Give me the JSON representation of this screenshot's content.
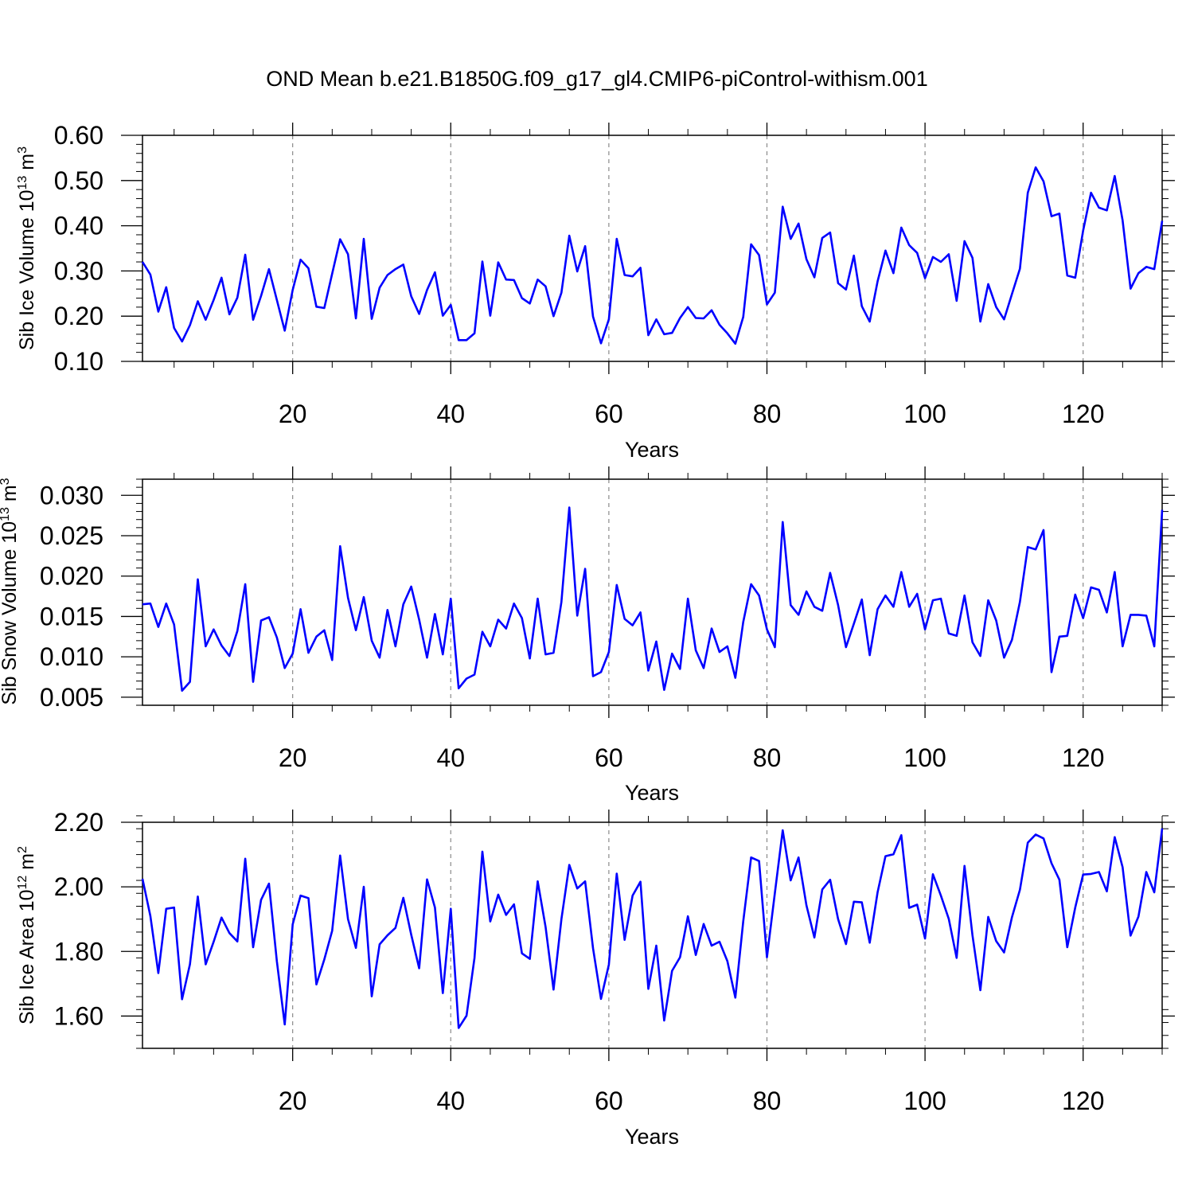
{
  "figure": {
    "title": "OND Mean b.e21.B1850G.f09_g17_gl4.CMIP6-piControl-withism.001",
    "line_color": "#0000ff"
  },
  "chart_data": [
    {
      "type": "line",
      "xlabel": "Years",
      "ylabel_main": "Sib Ice Volume 10",
      "ylabel_exp": "13",
      "ylabel_unit": " m",
      "ylabel_unit_exp": "3",
      "xlim": [
        1,
        130
      ],
      "ylim": [
        0.1,
        0.6
      ],
      "xticks": [
        20,
        40,
        60,
        80,
        100,
        120
      ],
      "yticks": [
        0.1,
        0.2,
        0.3,
        0.4,
        0.5,
        0.6
      ],
      "yticklabels": [
        "0.10",
        "0.20",
        "0.30",
        "0.40",
        "0.50",
        "0.60"
      ],
      "xgrid": true,
      "values": [
        0.32,
        0.292,
        0.21,
        0.264,
        0.174,
        0.144,
        0.18,
        0.233,
        0.192,
        0.236,
        0.285,
        0.204,
        0.241,
        0.336,
        0.192,
        0.245,
        0.304,
        0.236,
        0.168,
        0.258,
        0.325,
        0.306,
        0.221,
        0.218,
        0.294,
        0.37,
        0.337,
        0.195,
        0.371,
        0.194,
        0.263,
        0.291,
        0.304,
        0.314,
        0.244,
        0.205,
        0.258,
        0.297,
        0.201,
        0.225,
        0.147,
        0.147,
        0.162,
        0.321,
        0.201,
        0.319,
        0.281,
        0.28,
        0.24,
        0.228,
        0.281,
        0.266,
        0.2,
        0.252,
        0.378,
        0.299,
        0.355,
        0.199,
        0.14,
        0.193,
        0.371,
        0.291,
        0.288,
        0.307,
        0.158,
        0.193,
        0.16,
        0.163,
        0.196,
        0.22,
        0.196,
        0.195,
        0.213,
        0.181,
        0.162,
        0.139,
        0.198,
        0.359,
        0.335,
        0.226,
        0.252,
        0.442,
        0.371,
        0.405,
        0.326,
        0.286,
        0.373,
        0.385,
        0.273,
        0.259,
        0.334,
        0.222,
        0.188,
        0.277,
        0.345,
        0.295,
        0.396,
        0.357,
        0.34,
        0.284,
        0.331,
        0.32,
        0.337,
        0.234,
        0.366,
        0.329,
        0.188,
        0.271,
        0.22,
        0.193,
        0.249,
        0.305,
        0.473,
        0.529,
        0.498,
        0.421,
        0.427,
        0.29,
        0.285,
        0.389,
        0.473,
        0.44,
        0.434,
        0.51,
        0.412,
        0.261,
        0.295,
        0.309,
        0.304,
        0.411
      ]
    },
    {
      "type": "line",
      "xlabel": "Years",
      "ylabel_main": "Sib Snow Volume 10",
      "ylabel_exp": "13",
      "ylabel_unit": " m",
      "ylabel_unit_exp": "3",
      "xlim": [
        1,
        130
      ],
      "ylim": [
        0.004,
        0.032
      ],
      "xticks": [
        20,
        40,
        60,
        80,
        100,
        120
      ],
      "yticks": [
        0.005,
        0.01,
        0.015,
        0.02,
        0.025,
        0.03
      ],
      "yticklabels": [
        "0.005",
        "0.010",
        "0.015",
        "0.020",
        "0.025",
        "0.030"
      ],
      "xgrid": true,
      "values": [
        0.0165,
        0.0166,
        0.0137,
        0.0166,
        0.014,
        0.0058,
        0.0069,
        0.0196,
        0.0113,
        0.0134,
        0.0114,
        0.0101,
        0.0132,
        0.019,
        0.0069,
        0.0145,
        0.0149,
        0.0124,
        0.0086,
        0.0104,
        0.0159,
        0.0105,
        0.0125,
        0.0133,
        0.0096,
        0.0237,
        0.0173,
        0.0133,
        0.0174,
        0.012,
        0.0099,
        0.0158,
        0.0113,
        0.0165,
        0.0187,
        0.0146,
        0.0099,
        0.0153,
        0.0103,
        0.0172,
        0.0061,
        0.0073,
        0.0078,
        0.0131,
        0.0113,
        0.0146,
        0.0135,
        0.0166,
        0.0148,
        0.0098,
        0.0172,
        0.0103,
        0.0105,
        0.0168,
        0.0285,
        0.0151,
        0.0209,
        0.0076,
        0.0081,
        0.0106,
        0.0189,
        0.0147,
        0.0139,
        0.0155,
        0.0083,
        0.0119,
        0.0059,
        0.0104,
        0.0085,
        0.0172,
        0.0108,
        0.0086,
        0.0135,
        0.0106,
        0.0113,
        0.0074,
        0.0143,
        0.019,
        0.0176,
        0.0134,
        0.0112,
        0.0267,
        0.0164,
        0.0152,
        0.0181,
        0.0162,
        0.0157,
        0.0204,
        0.0164,
        0.0112,
        0.0141,
        0.0171,
        0.0102,
        0.0159,
        0.0176,
        0.0162,
        0.0205,
        0.0162,
        0.0178,
        0.0134,
        0.017,
        0.0172,
        0.0129,
        0.0126,
        0.0176,
        0.0118,
        0.0101,
        0.017,
        0.0145,
        0.0099,
        0.0121,
        0.0168,
        0.0236,
        0.0233,
        0.0257,
        0.0081,
        0.0125,
        0.0126,
        0.0177,
        0.0148,
        0.0186,
        0.0183,
        0.0155,
        0.0205,
        0.0113,
        0.0152,
        0.0152,
        0.0151,
        0.0113,
        0.0282
      ]
    },
    {
      "type": "line",
      "xlabel": "Years",
      "ylabel_main": "Sib Ice Area 10",
      "ylabel_exp": "12",
      "ylabel_unit": " m",
      "ylabel_unit_exp": "2",
      "xlim": [
        1,
        130
      ],
      "ylim": [
        1.5,
        2.2
      ],
      "xticks": [
        20,
        40,
        60,
        80,
        100,
        120
      ],
      "yticks": [
        1.6,
        1.8,
        2.0,
        2.2
      ],
      "yticklabels": [
        "1.60",
        "1.80",
        "2.00",
        "2.20"
      ],
      "xgrid": true,
      "values": [
        2.025,
        1.91,
        1.733,
        1.932,
        1.936,
        1.652,
        1.76,
        1.97,
        1.76,
        1.83,
        1.905,
        1.857,
        1.831,
        2.087,
        1.813,
        1.96,
        2.01,
        1.77,
        1.574,
        1.884,
        1.973,
        1.965,
        1.698,
        1.775,
        1.864,
        2.097,
        1.9,
        1.811,
        2.0,
        1.661,
        1.822,
        1.85,
        1.873,
        1.966,
        1.852,
        1.748,
        2.023,
        1.936,
        1.671,
        1.932,
        1.563,
        1.601,
        1.78,
        2.109,
        1.893,
        1.976,
        1.913,
        1.946,
        1.794,
        1.777,
        2.017,
        1.876,
        1.682,
        1.9,
        2.068,
        1.995,
        2.017,
        1.81,
        1.653,
        1.759,
        2.041,
        1.836,
        1.973,
        2.016,
        1.684,
        1.818,
        1.586,
        1.74,
        1.782,
        1.909,
        1.789,
        1.885,
        1.818,
        1.83,
        1.77,
        1.657,
        1.893,
        2.091,
        2.08,
        1.782,
        1.98,
        2.175,
        2.02,
        2.091,
        1.943,
        1.843,
        1.992,
        2.022,
        1.9,
        1.823,
        1.954,
        1.952,
        1.827,
        1.983,
        2.095,
        2.101,
        2.16,
        1.935,
        1.945,
        1.84,
        2.039,
        1.973,
        1.901,
        1.78,
        2.065,
        1.85,
        1.68,
        1.907,
        1.832,
        1.797,
        1.906,
        1.991,
        2.137,
        2.162,
        2.15,
        2.073,
        2.022,
        1.813,
        1.936,
        2.038,
        2.04,
        2.046,
        1.986,
        2.154,
        2.061,
        1.849,
        1.908,
        2.046,
        1.983,
        2.181
      ]
    }
  ]
}
